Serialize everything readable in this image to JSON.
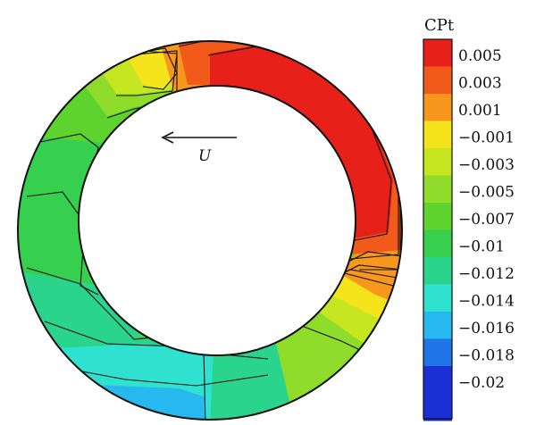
{
  "colorbar": {
    "title": "CPt",
    "levels": [
      {
        "label": "0.005",
        "color": "#e8201a"
      },
      {
        "label": "0.003",
        "color": "#f25a1c"
      },
      {
        "label": "0.001",
        "color": "#f7971e"
      },
      {
        "label": "−0.001",
        "color": "#f5e31c"
      },
      {
        "label": "−0.003",
        "color": "#c6e622"
      },
      {
        "label": "−0.005",
        "color": "#8fdc2a"
      },
      {
        "label": "−0.007",
        "color": "#5ed32e"
      },
      {
        "label": "−0.01",
        "color": "#36cf4e"
      },
      {
        "label": "−0.012",
        "color": "#2bd48c"
      },
      {
        "label": "−0.014",
        "color": "#2fe2cf"
      },
      {
        "label": "−0.016",
        "color": "#26b8ee"
      },
      {
        "label": "−0.018",
        "color": "#1f74e8"
      },
      {
        "label": "−0.02",
        "color": "#1a2fd4"
      }
    ],
    "extra_swatches": [
      "#1a2fd4"
    ]
  },
  "annotation": {
    "direction_label": "U",
    "arrow_direction": "left"
  }
}
